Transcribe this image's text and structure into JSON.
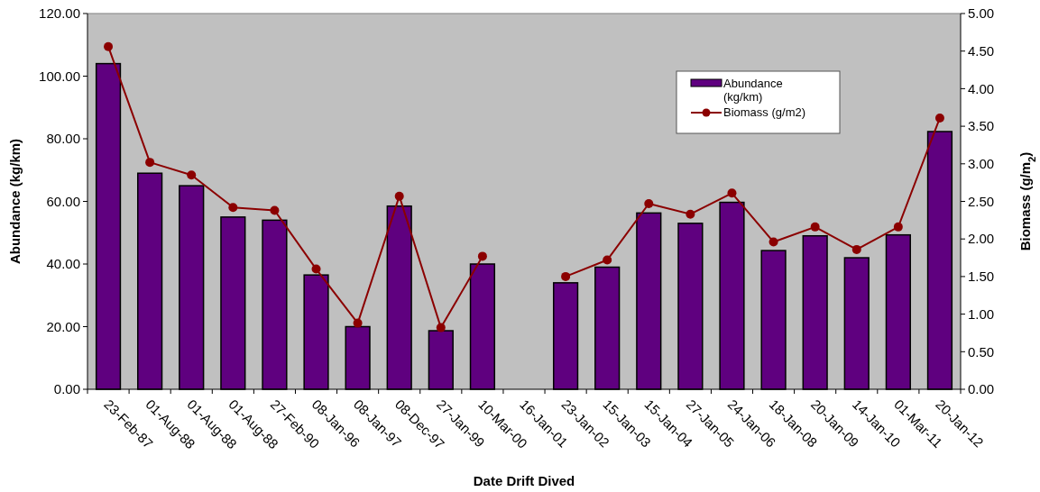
{
  "chart_data": {
    "type": "bar",
    "xlabel": "Date Drift Dived",
    "ylabel": "Abundance (kg/km)",
    "y2label": "Biomass (g/m$_{2}$)",
    "categories": [
      "23-Feb-87",
      "01-Aug-88",
      "01-Aug-88",
      "01-Aug-88",
      "27-Feb-90",
      "08-Jan-96",
      "08-Jan-97",
      "08-Dec-97",
      "27-Jan-99",
      "10-Mar-00",
      "16-Jan-01",
      "23-Jan-02",
      "15-Jan-03",
      "15-Jan-04",
      "27-Jan-05",
      "24-Jan-06",
      "18-Jan-08",
      "20-Jan-09",
      "14-Jan-10",
      "01-Mar-11",
      "20-Jan-12"
    ],
    "series": [
      {
        "name": "Abundance (kg/km)",
        "color": "#5f007f",
        "values": [
          104,
          69,
          65,
          55,
          54,
          36.5,
          20,
          58.5,
          18.7,
          40,
          null,
          34,
          39,
          56.3,
          53,
          59.7,
          44.3,
          49,
          42,
          49.3,
          82.3
        ]
      },
      {
        "name": "Biomass (g/m2)",
        "type": "line",
        "axis": "y2",
        "color": "#8b0000",
        "marker": "circle",
        "values": [
          4.56,
          3.02,
          2.85,
          2.42,
          2.38,
          1.6,
          0.88,
          2.57,
          0.82,
          1.77,
          null,
          1.5,
          1.72,
          2.47,
          2.33,
          2.61,
          1.96,
          2.16,
          1.86,
          2.16,
          3.61
        ]
      }
    ],
    "ylim": [
      0,
      120
    ],
    "yticks": [
      {
        "value": 0,
        "label": "0.00"
      },
      {
        "value": 20,
        "label": "20.00"
      },
      {
        "value": 40,
        "label": "40.00"
      },
      {
        "value": 60,
        "label": "60.00"
      },
      {
        "value": 80,
        "label": "80.00"
      },
      {
        "value": 100,
        "label": "100.00"
      },
      {
        "value": 120,
        "label": "120.00"
      }
    ],
    "y2lim": [
      0,
      5
    ],
    "y2ticks": [
      {
        "value": 0,
        "label": "0.00"
      },
      {
        "value": 0.5,
        "label": "0.50"
      },
      {
        "value": 1,
        "label": "1.00"
      },
      {
        "value": 1.5,
        "label": "1.50"
      },
      {
        "value": 2,
        "label": "2.00"
      },
      {
        "value": 2.5,
        "label": "2.50"
      },
      {
        "value": 3,
        "label": "3.00"
      },
      {
        "value": 3.5,
        "label": "3.50"
      },
      {
        "value": 4,
        "label": "4.00"
      },
      {
        "value": 4.5,
        "label": "4.50"
      },
      {
        "value": 5,
        "label": "5.00"
      }
    ],
    "grid": false,
    "legend": "top right"
  }
}
